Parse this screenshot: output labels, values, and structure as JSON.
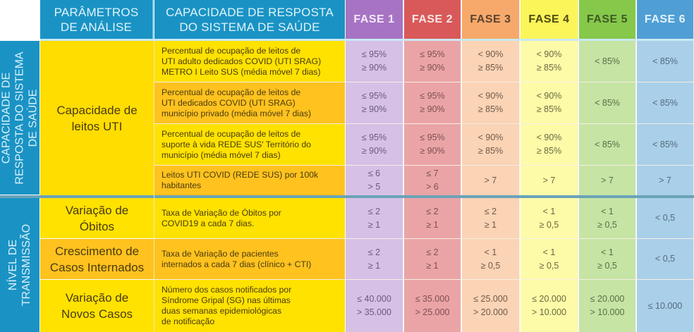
{
  "header": {
    "params_label": "PARÂMETROS\nDE ANÁLISE",
    "capacity_label": "CAPACIDADE DE RESPOSTA\nDO SISTEMA DE SAÚDE",
    "phases": [
      {
        "label": "FASE 1",
        "color": "#a774c4",
        "text_color": "#f4eafa"
      },
      {
        "label": "FASE 2",
        "color": "#d9595a",
        "text_color": "#fbe6e6"
      },
      {
        "label": "FASE 3",
        "color": "#f6a96a",
        "text_color": "#5a4330"
      },
      {
        "label": "FASE 4",
        "color": "#fbf55a",
        "text_color": "#4f4a10"
      },
      {
        "label": "FASE 5",
        "color": "#86c84a",
        "text_color": "#3d5a22"
      },
      {
        "label": "FASE 6",
        "color": "#4f9fd5",
        "text_color": "#e6f2fb"
      }
    ]
  },
  "groups": [
    {
      "label": "CAPACIDADE DE\nRESPOSTA DO SISTEMA\nDE SAÚDE"
    },
    {
      "label": "NÍVEL DE\nTRANSMISSÃO"
    }
  ],
  "parameters": [
    {
      "label": "Capacidade de\nleitos UTI"
    },
    {
      "label": "Variação de\nÓbitos"
    },
    {
      "label": "Crescimento de\nCasos Internados"
    },
    {
      "label": "Variação de\nNovos Casos"
    }
  ],
  "phase_cell_colors": [
    "#d6c0e6",
    "#eba4a6",
    "#fbd3b5",
    "#fdfba8",
    "#c6e4a4",
    "#a9cfe9"
  ],
  "phase_cell_text_colors": [
    "#6c5a7e",
    "#7a5052",
    "#6e5a4a",
    "#6a6840",
    "#5a6e48",
    "#566a7e"
  ],
  "rows": [
    {
      "desc": "Percentual de ocupação de leitos de\nUTI adulto dedicados COVID (UTI SRAG)\nMETRO I Leito SUS (média móvel 7 dias)",
      "values": [
        "≤ 95%\n≥ 90%",
        "≤ 95%\n≥ 90%",
        "< 90%\n≥ 85%",
        "< 90%\n≥ 85%",
        "< 85%",
        "< 85%"
      ]
    },
    {
      "desc": "Percentual de ocupação de leitos de\nUTI dedicados COVID (UTI SRAG)\nmunicípio privado (média móvel 7 dias)",
      "values": [
        "≤ 95%\n≥ 90%",
        "≤ 95%\n≥ 90%",
        "< 90%\n≥ 85%",
        "< 90%\n≥ 85%",
        "< 85%",
        "< 85%"
      ]
    },
    {
      "desc": "Percentual de ocupação de leitos de\nsuporte à vida REDE SUS' Território do\nmunicípio (média móvel 7 dias)",
      "values": [
        "≤ 95%\n≥ 90%",
        "≤ 95%\n≥ 90%",
        "< 90%\n≥ 85%",
        "< 90%\n≥ 85%",
        "< 85%",
        "< 85%"
      ]
    },
    {
      "desc": "Leitos UTI COVID (REDE SUS) por 100k\nhabitantes",
      "values": [
        "≤ 6\n> 5",
        "≤ 7\n> 6",
        "> 7",
        "> 7",
        "> 7",
        "> 7"
      ]
    },
    {
      "desc": "Taxa de Variação de Óbitos por\nCOVID19 a cada 7 dias.",
      "values": [
        "≤ 2\n≥ 1",
        "≤ 2\n≥ 1",
        "≤ 2\n≥ 1",
        "< 1\n≥ 0,5",
        "< 1\n≥ 0,5",
        "< 0,5"
      ]
    },
    {
      "desc": "Taxa de Variação de pacientes\ninternados a cada 7 dias (clínico + CTI)",
      "values": [
        "≤ 2\n≥ 1",
        "≤ 2\n≥ 1",
        "< 1\n≥ 0,5",
        "< 1\n≥ 0,5",
        "< 1\n≥ 0,5",
        "< 0,5"
      ]
    },
    {
      "desc": "Número dos casos notificados por\nSíndrome Gripal (SG) nas últimas\nduas semanas epidemiológicas\nde notificação",
      "values": [
        "≤ 40.000\n> 35.000",
        "≤ 35.000\n> 25.000",
        "≤ 25.000\n> 20.000",
        "≤ 20.000\n> 10.000",
        "≤ 20.000\n> 10.000",
        "≤ 10.000"
      ]
    }
  ]
}
